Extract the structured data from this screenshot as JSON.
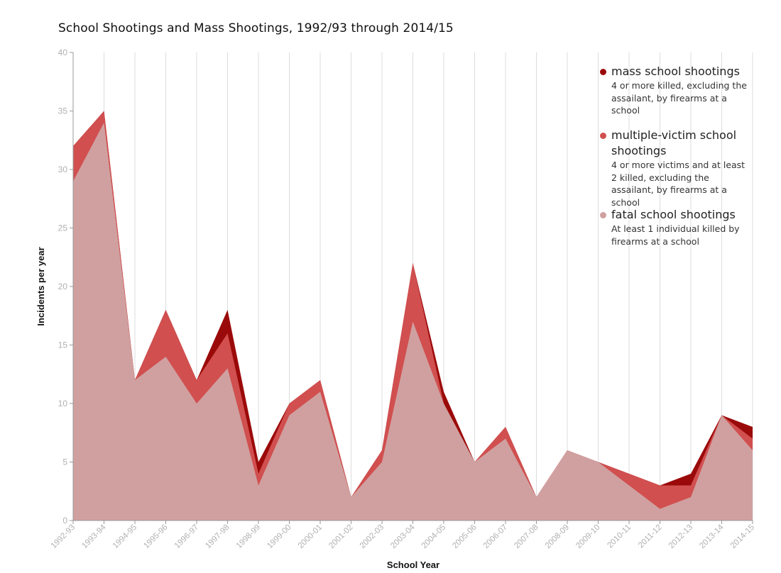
{
  "chart_data": {
    "type": "area",
    "title": "School Shootings and Mass Shootings, 1992/93 through 2014/15",
    "xlabel": "School Year",
    "ylabel": "Incidents per year",
    "ylim": [
      0,
      40
    ],
    "yticks": [
      0,
      5,
      10,
      15,
      20,
      25,
      30,
      35,
      40
    ],
    "grid": "vertical",
    "legend_position": "top-right",
    "categories": [
      "1992-93",
      "1993-94",
      "1994-95",
      "1995-96",
      "1996-97",
      "1997-98",
      "1998-99",
      "1999-00",
      "2000-01",
      "2001-02",
      "2002-03",
      "2003-04",
      "2004-05",
      "2005-06",
      "2006-07",
      "2007-08",
      "2008-09",
      "2009-10",
      "2010-11",
      "2011-12",
      "2012-13",
      "2013-14",
      "2014-15"
    ],
    "series": [
      {
        "name": "mass school shootings",
        "description": "4 or more killed, excluding the assailant, by firearms at a school",
        "color": "#9b0a0a",
        "values": [
          32,
          35,
          12,
          18,
          12,
          18,
          5,
          10,
          12,
          2,
          6,
          22,
          11,
          5,
          8,
          2,
          6,
          5,
          4,
          3,
          4,
          9,
          8
        ]
      },
      {
        "name": "multiple-victim school shootings",
        "description": "4 or more victims and at least 2 killed, excluding the assailant, by firearms at a school",
        "color": "#d14f4f",
        "values": [
          32,
          35,
          12,
          18,
          12,
          16,
          4,
          10,
          12,
          2,
          6,
          22,
          10,
          5,
          8,
          2,
          6,
          5,
          4,
          3,
          3,
          9,
          7
        ]
      },
      {
        "name": "fatal school shootings",
        "description": "At least 1 individual killed by firearms at a school",
        "color": "#d0a0a0",
        "values": [
          29,
          34,
          12,
          14,
          10,
          13,
          3,
          9,
          11,
          2,
          5,
          17,
          10,
          5,
          7,
          2,
          6,
          5,
          3,
          1,
          2,
          9,
          6
        ]
      }
    ]
  }
}
